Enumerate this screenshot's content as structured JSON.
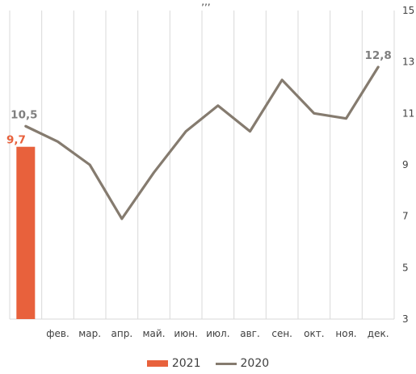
{
  "chart_data": {
    "type": "bar-line",
    "categories": [
      "",
      "фев.",
      "мар.",
      "апр.",
      "май.",
      "июн.",
      "июл.",
      "авг.",
      "сен.",
      "окт.",
      "ноя.",
      "дек."
    ],
    "series": [
      {
        "name": "2021",
        "type": "bar",
        "color": "#E8613C",
        "values": [
          9.7,
          null,
          null,
          null,
          null,
          null,
          null,
          null,
          null,
          null,
          null,
          null
        ]
      },
      {
        "name": "2020",
        "type": "line",
        "color": "#857B6F",
        "values": [
          10.5,
          9.9,
          9.0,
          6.9,
          8.7,
          10.3,
          11.3,
          10.3,
          12.3,
          11.0,
          10.8,
          12.8
        ]
      }
    ],
    "data_labels": [
      {
        "series": "2021",
        "index": 0,
        "text": "9,7",
        "color": "#E8613C"
      },
      {
        "series": "2020",
        "index": 0,
        "text": "10,5",
        "color": "#7F7F7F"
      },
      {
        "series": "2020",
        "index": 11,
        "text": "12,8",
        "color": "#7F7F7F"
      }
    ],
    "yaxis": {
      "position": "right",
      "min": 3,
      "max": 15,
      "ticks": [
        "3",
        "5",
        "7",
        "9",
        "11",
        "13",
        "15"
      ]
    },
    "grid": "vertical",
    "legend": "bottom",
    "title_fragment": ",,,"
  }
}
